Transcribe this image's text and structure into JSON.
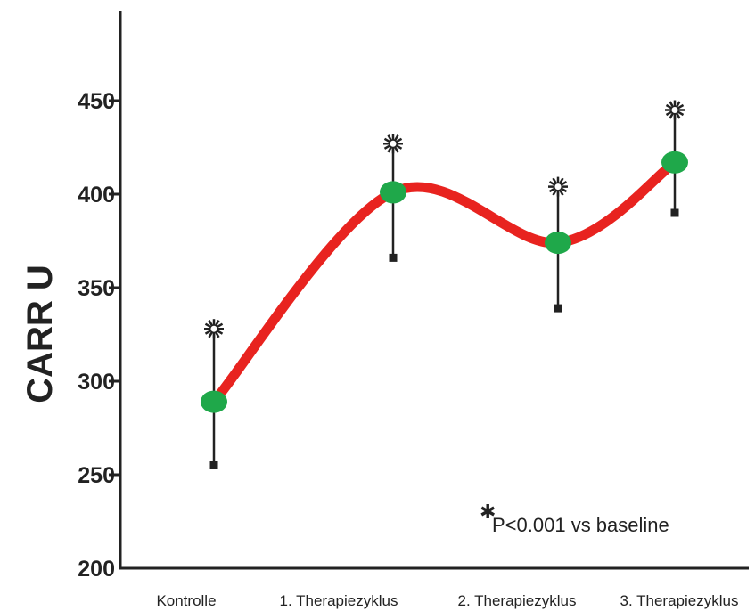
{
  "chart_data": {
    "type": "line",
    "ylabel": "CARR U",
    "xlabel": "",
    "ylim": [
      200,
      500
    ],
    "yticks": [
      200,
      250,
      300,
      350,
      400,
      450
    ],
    "categories": [
      "Kontrolle",
      "1. Therapiezyklus",
      "2. Therapiezyklus",
      "3. Therapiezyklus"
    ],
    "series": [
      {
        "values": [
          289,
          401,
          374,
          417
        ],
        "lower": [
          255,
          366,
          339,
          390
        ],
        "upper": [
          328,
          427,
          404,
          445
        ],
        "significant": [
          true,
          true,
          true,
          true
        ]
      }
    ],
    "grid": false,
    "annotation": {
      "symbol": "✱",
      "text": "P<0.001 vs baseline"
    },
    "colors": {
      "line": "#e8231f",
      "marker": "#1fa84a",
      "axis": "#222222"
    }
  }
}
